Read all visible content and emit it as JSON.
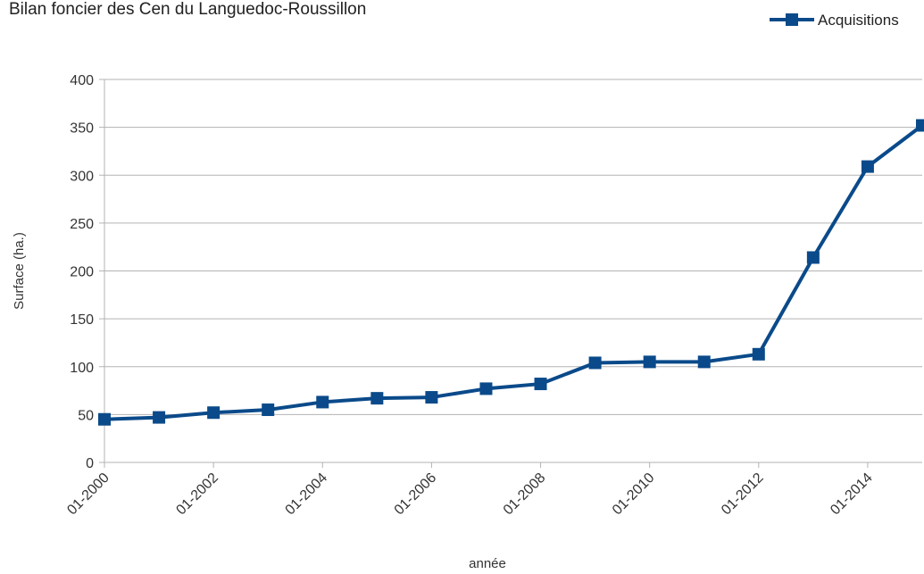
{
  "chart_data": {
    "type": "line",
    "title": "Bilan foncier des Cen du Languedoc-Roussillon",
    "xlabel": "année",
    "ylabel": "Surface (ha.)",
    "ylim": [
      0,
      400
    ],
    "yticks": [
      0,
      50,
      100,
      150,
      200,
      250,
      300,
      350,
      400
    ],
    "xtick_labels": [
      "01-2000",
      "01-2002",
      "01-2004",
      "01-2006",
      "01-2008",
      "01-2010",
      "01-2012",
      "01-2014"
    ],
    "x": [
      "01-2000",
      "01-2001",
      "01-2002",
      "01-2003",
      "01-2004",
      "01-2005",
      "01-2006",
      "01-2007",
      "01-2008",
      "01-2009",
      "01-2010",
      "01-2011",
      "01-2012",
      "01-2013",
      "01-2014",
      "01-2015"
    ],
    "series": [
      {
        "name": "Acquisitions",
        "color": "#0a4a8a",
        "marker": "square",
        "values": [
          45,
          47,
          52,
          55,
          63,
          67,
          68,
          77,
          82,
          104,
          105,
          105,
          113,
          214,
          309,
          352
        ]
      }
    ],
    "grid": "horizontal",
    "legend": "top-right"
  }
}
